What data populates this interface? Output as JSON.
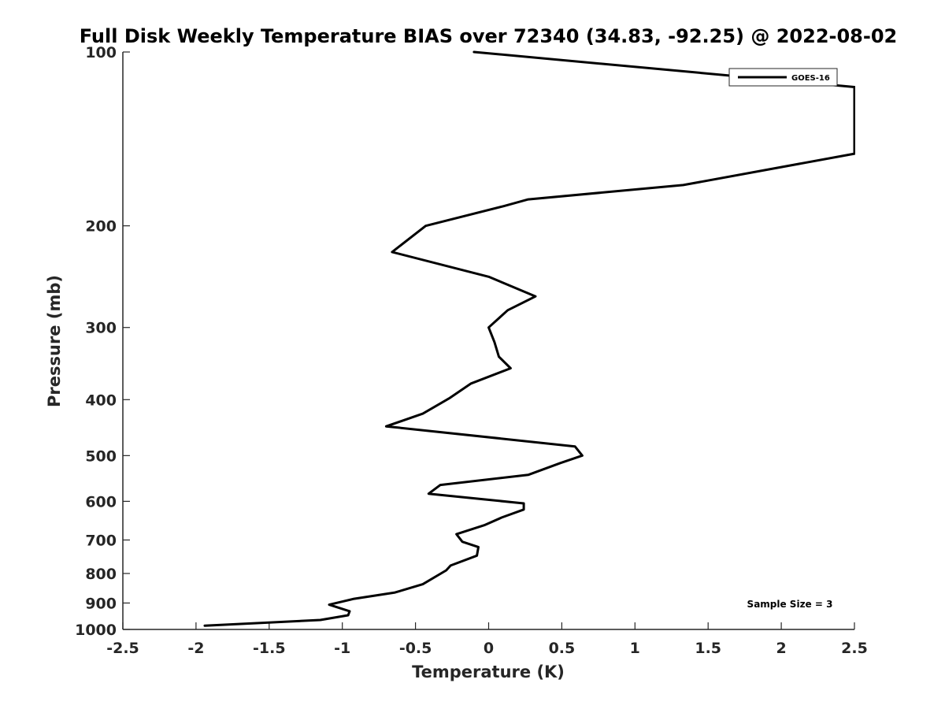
{
  "chart_data": {
    "type": "line",
    "title": "Full Disk Weekly Temperature BIAS over 72340 (34.83, -92.25) @ 2022-08-02",
    "xlabel": "Temperature (K)",
    "ylabel": "Pressure (mb)",
    "xlim": [
      -2.5,
      2.5
    ],
    "ylim": [
      1000,
      100
    ],
    "y_scale": "log",
    "y_reversed": true,
    "grid": false,
    "legend_location": "top-right",
    "x_ticks": [
      "-2.5",
      "-2",
      "-1.5",
      "-1",
      "-0.5",
      "0",
      "0.5",
      "1",
      "1.5",
      "2",
      "2.5"
    ],
    "x_tick_values": [
      -2.5,
      -2,
      -1.5,
      -1,
      -0.5,
      0,
      0.5,
      1,
      1.5,
      2,
      2.5
    ],
    "y_ticks": [
      "100",
      "200",
      "300",
      "400",
      "500",
      "600",
      "700",
      "800",
      "900",
      "1000"
    ],
    "y_tick_values": [
      100,
      200,
      300,
      400,
      500,
      600,
      700,
      800,
      900,
      1000
    ],
    "annotation": "Sample Size = 3",
    "series": [
      {
        "name": "GOES-16",
        "color": "#000000",
        "points": [
          {
            "x": -0.1,
            "p": 100
          },
          {
            "x": 2.5,
            "p": 115
          },
          {
            "x": 2.5,
            "p": 150
          },
          {
            "x": 1.33,
            "p": 170
          },
          {
            "x": 0.27,
            "p": 180
          },
          {
            "x": 0.1,
            "p": 185
          },
          {
            "x": -0.43,
            "p": 200
          },
          {
            "x": -0.66,
            "p": 222
          },
          {
            "x": 0.0,
            "p": 245
          },
          {
            "x": 0.32,
            "p": 265
          },
          {
            "x": 0.13,
            "p": 280
          },
          {
            "x": 0.0,
            "p": 300
          },
          {
            "x": 0.04,
            "p": 318
          },
          {
            "x": 0.07,
            "p": 337
          },
          {
            "x": 0.15,
            "p": 353
          },
          {
            "x": -0.12,
            "p": 375
          },
          {
            "x": -0.27,
            "p": 398
          },
          {
            "x": -0.45,
            "p": 423
          },
          {
            "x": -0.7,
            "p": 445
          },
          {
            "x": 0.59,
            "p": 482
          },
          {
            "x": 0.64,
            "p": 500
          },
          {
            "x": 0.49,
            "p": 515
          },
          {
            "x": 0.27,
            "p": 540
          },
          {
            "x": -0.33,
            "p": 562
          },
          {
            "x": -0.41,
            "p": 582
          },
          {
            "x": 0.24,
            "p": 605
          },
          {
            "x": 0.24,
            "p": 620
          },
          {
            "x": 0.09,
            "p": 640
          },
          {
            "x": -0.03,
            "p": 660
          },
          {
            "x": -0.22,
            "p": 684
          },
          {
            "x": -0.18,
            "p": 705
          },
          {
            "x": -0.07,
            "p": 720
          },
          {
            "x": -0.08,
            "p": 745
          },
          {
            "x": -0.26,
            "p": 775
          },
          {
            "x": -0.29,
            "p": 790
          },
          {
            "x": -0.45,
            "p": 835
          },
          {
            "x": -0.64,
            "p": 863
          },
          {
            "x": -0.92,
            "p": 885
          },
          {
            "x": -1.09,
            "p": 906
          },
          {
            "x": -0.95,
            "p": 930
          },
          {
            "x": -0.96,
            "p": 945
          },
          {
            "x": -1.15,
            "p": 963
          },
          {
            "x": -1.94,
            "p": 985
          }
        ]
      }
    ]
  }
}
